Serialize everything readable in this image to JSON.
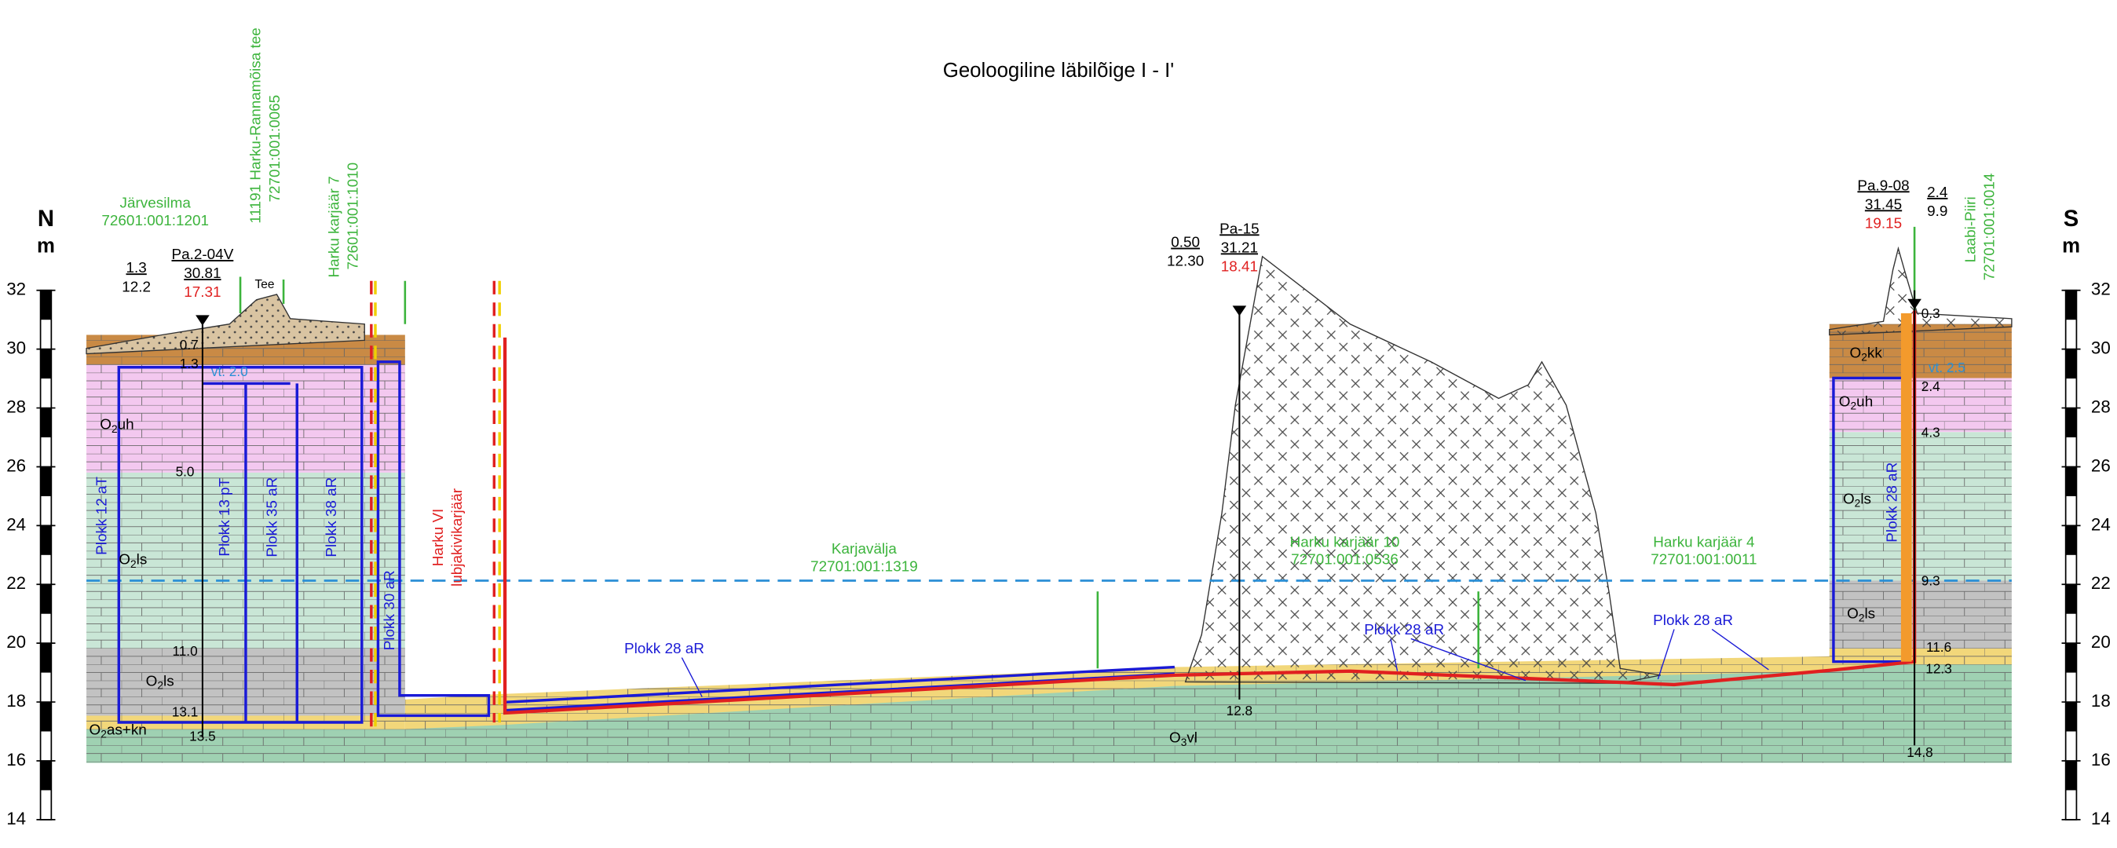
{
  "title": "Geoloogiline läbilõige I - I'",
  "axes": {
    "left": {
      "direction": "N",
      "unit": "m"
    },
    "right": {
      "direction": "S",
      "unit": "m"
    },
    "ticks": [
      32,
      30,
      28,
      26,
      24,
      22,
      20,
      18,
      16,
      14
    ]
  },
  "properties": [
    {
      "name": "Järvesilma",
      "code": "72601:001:1201"
    },
    {
      "name": "11191 Harku-Rannamõisa tee",
      "code": "72701:001:0065"
    },
    {
      "name": "Harku karjäär 7",
      "code": "72601:001:1010"
    },
    {
      "name": "Karjavälja",
      "code": "72701:001:1319"
    },
    {
      "name": "Harku karjäär 10",
      "code": "72701:001:0536"
    },
    {
      "name": "Harku karjäär 4",
      "code": "72701:001:0011"
    },
    {
      "name": "Laabi-Piiri",
      "code": "72701:001:0014"
    }
  ],
  "boreholes": [
    {
      "id": "Pa.2-04V",
      "top": "30.81",
      "bottom": "17.31",
      "side_top": "1.3",
      "side_bottom": "12.2",
      "depths": [
        "0.7",
        "1.3",
        "5.0",
        "11.0",
        "13.1",
        "13.5"
      ],
      "water": "vt. 2.0"
    },
    {
      "id": "Pa-15",
      "top": "31.21",
      "bottom": "18.41",
      "side_top": "0.50",
      "side_bottom": "12.30",
      "depths": [
        "12.8"
      ]
    },
    {
      "id": "Pa.9-08",
      "top": "31.45",
      "bottom": "19.15",
      "side_top": "2.4",
      "side_bottom": "9.9",
      "depths": [
        "0.3",
        "2.4",
        "4.3",
        "9.3",
        "11.6",
        "12.3",
        "14.8"
      ],
      "water": "vt. 2.5"
    }
  ],
  "layers": [
    {
      "symbol": "O",
      "index": "2",
      "suffix": "uh"
    },
    {
      "symbol": "O",
      "index": "2",
      "suffix": "ls"
    },
    {
      "symbol": "O",
      "index": "2",
      "suffix": "ls"
    },
    {
      "symbol": "O",
      "index": "2",
      "suffix": "as+kn"
    },
    {
      "symbol": "O",
      "index": "2",
      "suffix": "kk"
    },
    {
      "symbol": "O",
      "index": "2",
      "suffix": "uh"
    },
    {
      "symbol": "O",
      "index": "2",
      "suffix": "ls"
    },
    {
      "symbol": "O",
      "index": "2",
      "suffix": "ls"
    },
    {
      "symbol": "O",
      "index": "3",
      "suffix": "vl"
    }
  ],
  "blocks": [
    "Plokk 12 aT",
    "Plokk 13 pT",
    "Plokk 35 aR",
    "Plokk 38 aR",
    "Plokk 30 aR",
    "Plokk 28 aR",
    "Plokk 28 aR",
    "Plokk 28 aR",
    "Plokk 28 aR"
  ],
  "quarry": [
    "Harku VI",
    "lubjakivikarjäär"
  ],
  "road": "Tee"
}
